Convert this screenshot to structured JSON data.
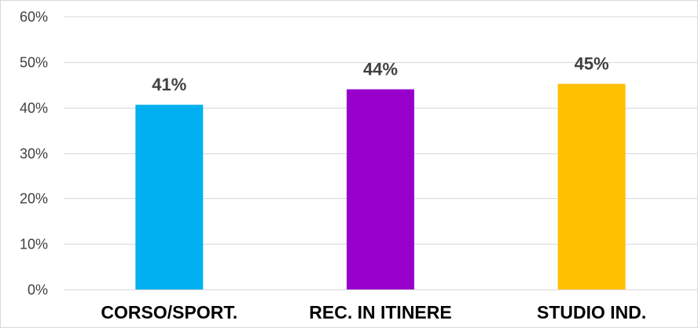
{
  "chart_data": {
    "type": "bar",
    "categories": [
      "CORSO/SPORT.",
      "REC. IN ITINERE",
      "STUDIO IND."
    ],
    "values": [
      0.406,
      0.44,
      0.452
    ],
    "data_labels": [
      "41%",
      "44%",
      "45%"
    ],
    "colors": [
      "#00b0f0",
      "#9900cc",
      "#ffc000"
    ],
    "ylim": [
      0,
      0.6
    ],
    "yticks": [
      0,
      0.1,
      0.2,
      0.3,
      0.4,
      0.5,
      0.6
    ],
    "ytick_labels": [
      "0%",
      "10%",
      "20%",
      "30%",
      "40%",
      "50%",
      "60%"
    ],
    "grid": true,
    "legend": "none",
    "gridline_color": "#d9d9d9"
  }
}
